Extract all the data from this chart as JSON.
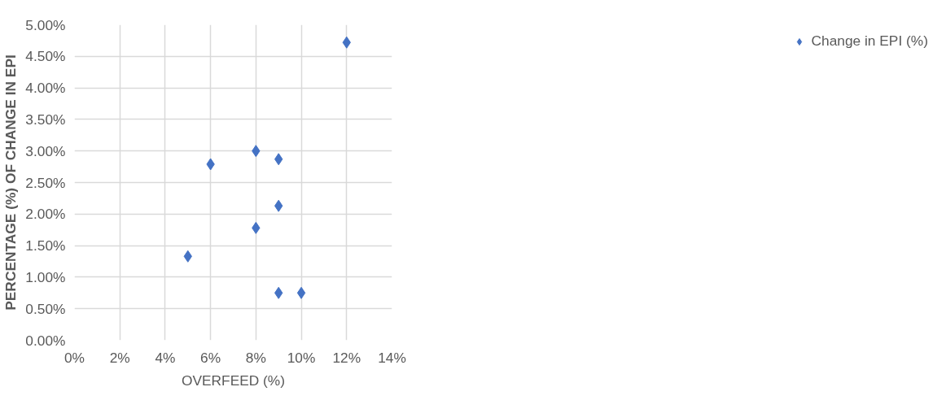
{
  "chart_data": {
    "type": "scatter",
    "xlabel": "OVERFEED (%)",
    "ylabel": "PERCENTAGE (%) OF CHANGE IN EPI",
    "x": [
      5,
      6,
      8,
      8,
      9,
      9,
      9,
      10,
      12
    ],
    "series": [
      {
        "name": "Change in EPI (%)",
        "color": "#4472c4",
        "values": [
          1.33,
          2.79,
          3.0,
          1.78,
          2.87,
          2.13,
          0.75,
          0.75,
          4.72
        ]
      }
    ],
    "xlim": [
      0,
      14
    ],
    "xticks": [
      {
        "value": 0,
        "label": "0%"
      },
      {
        "value": 2,
        "label": "2%"
      },
      {
        "value": 4,
        "label": "4%"
      },
      {
        "value": 6,
        "label": "6%"
      },
      {
        "value": 8,
        "label": "8%"
      },
      {
        "value": 10,
        "label": "10%"
      },
      {
        "value": 12,
        "label": "12%"
      },
      {
        "value": 14,
        "label": "14%"
      }
    ],
    "ylim": [
      0,
      5
    ],
    "yticks": [
      {
        "value": 0,
        "label": "0.00%"
      },
      {
        "value": 0.5,
        "label": "0.50%"
      },
      {
        "value": 1,
        "label": "1.00%"
      },
      {
        "value": 1.5,
        "label": "1.50%"
      },
      {
        "value": 2,
        "label": "2.00%"
      },
      {
        "value": 2.5,
        "label": "2.50%"
      },
      {
        "value": 3,
        "label": "3.00%"
      },
      {
        "value": 3.5,
        "label": "3.50%"
      },
      {
        "value": 4,
        "label": "4.00%"
      },
      {
        "value": 4.5,
        "label": "4.50%"
      },
      {
        "value": 5,
        "label": "5.00%"
      }
    ],
    "grid": true,
    "legend": "right",
    "marker": "diamond"
  }
}
